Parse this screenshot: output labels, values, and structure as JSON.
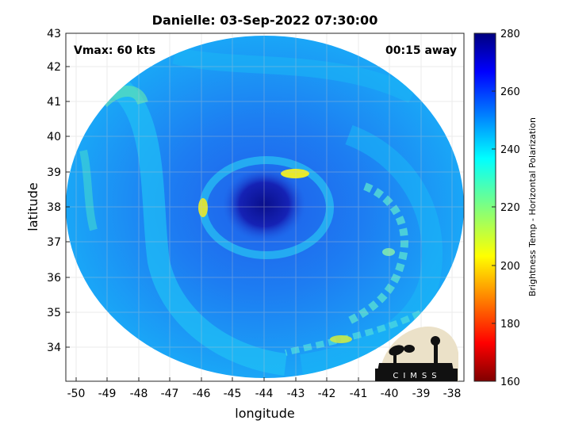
{
  "title": "Danielle: 03-Sep-2022 07:30:00",
  "annotations": {
    "vmax": "Vmax: 60 kts",
    "time_away": "00:15 away"
  },
  "axes": {
    "xlabel": "longitude",
    "ylabel": "latitude",
    "xticks": [
      "-50",
      "-49",
      "-48",
      "-47",
      "-46",
      "-45",
      "-44",
      "-43",
      "-42",
      "-41",
      "-40",
      "-39",
      "-38"
    ],
    "yticks": [
      "34",
      "35",
      "36",
      "37",
      "38",
      "39",
      "40",
      "41",
      "42",
      "43"
    ],
    "grid": true
  },
  "colorbar": {
    "label": "Brightness Temp - Horizontal Polarization",
    "ticks": [
      "160",
      "180",
      "200",
      "220",
      "240",
      "260",
      "280"
    ],
    "colormap": "jet",
    "min": 160,
    "max": 280
  },
  "logo": {
    "text": "CIMSS"
  },
  "chart_data": {
    "type": "heatmap",
    "title": "Danielle: 03-Sep-2022 07:30:00",
    "xlabel": "longitude",
    "ylabel": "latitude",
    "xlim": [
      -50.3,
      -37.7
    ],
    "ylim": [
      33.1,
      43
    ],
    "storm_center": {
      "lon": -44.0,
      "lat": 38.0
    },
    "eye_brightness_temp": 270,
    "background_brightness_temp": 248,
    "rainband_brightness_temp_min": 200,
    "colorbar_range": [
      160,
      280
    ]
  }
}
